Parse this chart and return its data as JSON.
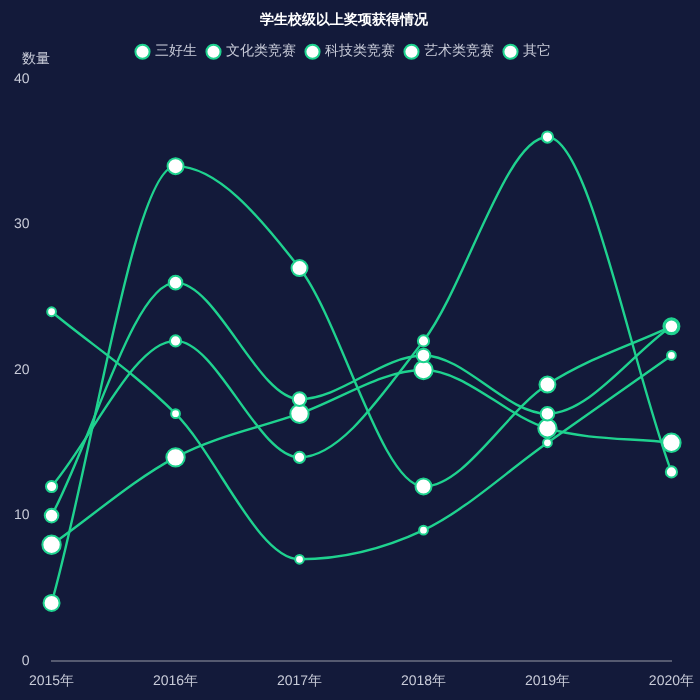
{
  "chart_data": {
    "type": "line",
    "title": "学生校级以上奖项获得情况",
    "ylabel": "数量",
    "categories": [
      "2015年",
      "2016年",
      "2017年",
      "2018年",
      "2019年",
      "2020年"
    ],
    "series": [
      {
        "name": "三好生",
        "color": "#1fd28f",
        "values": [
          24,
          17,
          7,
          9,
          15,
          21
        ]
      },
      {
        "name": "文化类竞赛",
        "color": "#1fd28f",
        "values": [
          12,
          22,
          14,
          22,
          36,
          13
        ]
      },
      {
        "name": "科技类竞赛",
        "color": "#1fd28f",
        "values": [
          10,
          26,
          18,
          21,
          17,
          23
        ]
      },
      {
        "name": "艺术类竞赛",
        "color": "#1fd28f",
        "values": [
          4,
          34,
          27,
          12,
          19,
          23
        ]
      },
      {
        "name": "其它",
        "color": "#1fd28f",
        "values": [
          8,
          14,
          17,
          20,
          16,
          15
        ]
      }
    ],
    "ylim": [
      0,
      40
    ],
    "yticks": [
      0,
      10,
      20,
      30,
      40
    ],
    "grid": false,
    "legend": "top",
    "marker": "circle",
    "line_style": "solid"
  }
}
